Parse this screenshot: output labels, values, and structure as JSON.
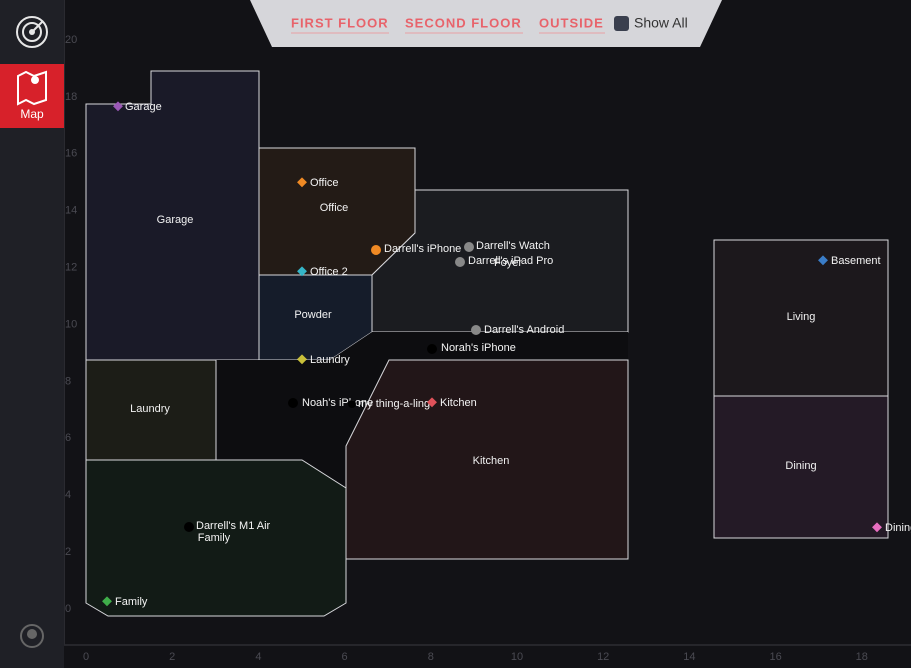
{
  "nav": {
    "map": "Map"
  },
  "tabs": [
    "FIRST FLOOR",
    "SECOND FLOOR",
    "OUTSIDE"
  ],
  "show_all": "Show All",
  "axis": {
    "xticks": [
      0,
      2,
      4,
      6,
      8,
      10,
      12,
      14,
      16,
      18
    ],
    "yticks": [
      0,
      2,
      4,
      6,
      8,
      10,
      12,
      14,
      16,
      18,
      20
    ]
  },
  "rooms": [
    "Garage",
    "Office",
    "Powder",
    "Foyer",
    "Laundry",
    "Kitchen",
    "Family",
    "Living",
    "Dining"
  ],
  "devices": [
    {
      "label": "Garage"
    },
    {
      "label": "Office"
    },
    {
      "label": "Darrell's iPhone"
    },
    {
      "label": "Darrell's Watch"
    },
    {
      "label": "Darrell's iPad Pro"
    },
    {
      "label": "Office 2"
    },
    {
      "label": "Darrell's Android"
    },
    {
      "label": "Laundry"
    },
    {
      "label": "Norah's iPhone"
    },
    {
      "label": "Noah's iPhone"
    },
    {
      "label": "my thing-a-ling"
    },
    {
      "label": "Kitchen"
    },
    {
      "label": "Darrell's M1 Air"
    },
    {
      "label": "Family"
    },
    {
      "label": "Basement"
    },
    {
      "label": "Dining"
    }
  ]
}
